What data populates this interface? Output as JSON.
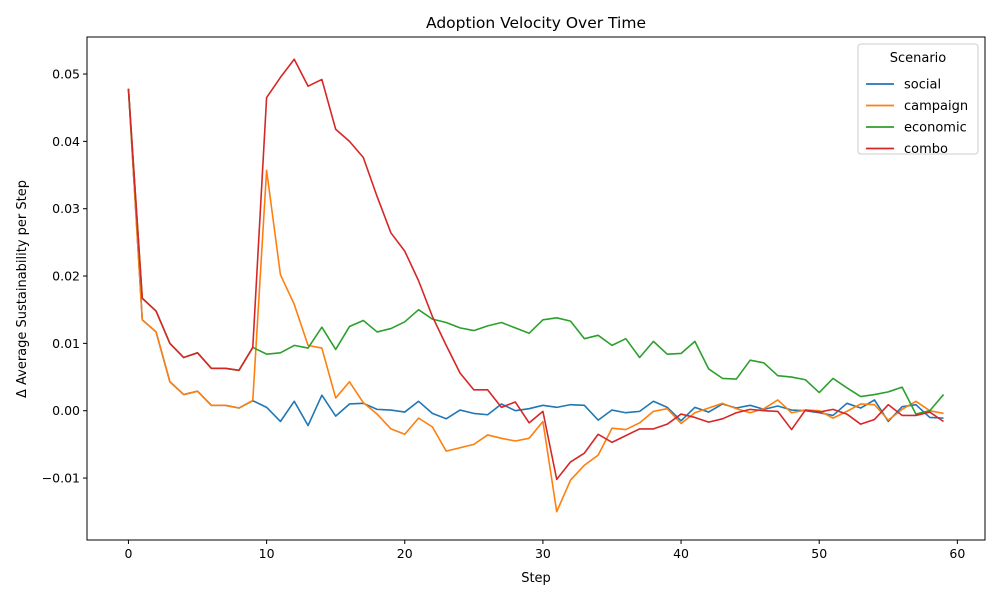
{
  "chart_data": {
    "type": "line",
    "title": "Adoption Velocity Over Time",
    "xlabel": "Step",
    "ylabel": "Δ Average Sustainability per Step",
    "xlim": [
      -3,
      62
    ],
    "ylim": [
      -0.0192,
      0.0555
    ],
    "xticks": [
      0,
      10,
      20,
      30,
      40,
      50,
      60
    ],
    "yticks": [
      -0.01,
      0.0,
      0.01,
      0.02,
      0.03,
      0.04,
      0.05
    ],
    "ytick_labels": [
      "−0.01",
      "0.00",
      "0.01",
      "0.02",
      "0.03",
      "0.04",
      "0.05"
    ],
    "grid": false,
    "legend": {
      "title": "Scenario",
      "placement": "upper-right"
    },
    "x": [
      0,
      1,
      2,
      3,
      4,
      5,
      6,
      7,
      8,
      9,
      10,
      11,
      12,
      13,
      14,
      15,
      16,
      17,
      18,
      19,
      20,
      21,
      22,
      23,
      24,
      25,
      26,
      27,
      28,
      29,
      30,
      31,
      32,
      33,
      34,
      35,
      36,
      37,
      38,
      39,
      40,
      41,
      42,
      43,
      44,
      45,
      46,
      47,
      48,
      49,
      50,
      51,
      52,
      53,
      54,
      55,
      56,
      57,
      58,
      59
    ],
    "series": [
      {
        "name": "social",
        "color": "#1f77b4",
        "values": [
          0.0478,
          0.0135,
          0.0117,
          0.0043,
          0.0024,
          0.0029,
          0.0008,
          0.0008,
          0.0004,
          0.0015,
          0.0005,
          -0.0016,
          0.0014,
          -0.0022,
          0.0023,
          -0.0008,
          0.001,
          0.0011,
          0.0002,
          0.0001,
          -0.0002,
          0.0014,
          -0.0004,
          -0.0012,
          0.0001,
          -0.0004,
          -0.0006,
          0.001,
          0.0,
          0.0003,
          0.0008,
          0.0005,
          0.0009,
          0.0008,
          -0.0014,
          0.0001,
          -0.0003,
          -0.0001,
          0.0014,
          0.0005,
          -0.0015,
          0.0005,
          -0.0002,
          0.001,
          0.0004,
          0.0008,
          0.0002,
          0.0007,
          0.0001,
          0.0,
          -0.0003,
          -0.0007,
          0.0011,
          0.0004,
          0.0016,
          -0.0016,
          0.0006,
          0.0009,
          -0.001,
          -0.0011
        ]
      },
      {
        "name": "campaign",
        "color": "#ff7f0e",
        "values": [
          0.0478,
          0.0135,
          0.0117,
          0.0043,
          0.0024,
          0.0029,
          0.0008,
          0.0008,
          0.0004,
          0.0015,
          0.0357,
          0.0202,
          0.0158,
          0.0097,
          0.0093,
          0.0019,
          0.0043,
          0.0012,
          -0.0005,
          -0.0027,
          -0.0035,
          -0.0011,
          -0.0024,
          -0.006,
          -0.0055,
          -0.005,
          -0.0036,
          -0.0041,
          -0.0045,
          -0.0041,
          -0.0016,
          -0.015,
          -0.0103,
          -0.0081,
          -0.0066,
          -0.0026,
          -0.0028,
          -0.0018,
          -0.0001,
          0.0003,
          -0.0019,
          -0.0003,
          0.0004,
          0.0011,
          0.0003,
          -0.0003,
          0.0003,
          0.0016,
          -0.0003,
          0.0001,
          0.0,
          -0.0011,
          -0.0001,
          0.001,
          0.0009,
          -0.0014,
          0.0002,
          0.0014,
          0.0,
          -0.0004
        ]
      },
      {
        "name": "economic",
        "color": "#2ca02c",
        "values": [
          0.0478,
          0.0167,
          0.0148,
          0.01,
          0.0079,
          0.0086,
          0.0063,
          0.0063,
          0.006,
          0.0094,
          0.0084,
          0.0086,
          0.0097,
          0.0093,
          0.0124,
          0.0091,
          0.0125,
          0.0134,
          0.0117,
          0.0122,
          0.0132,
          0.015,
          0.0136,
          0.0131,
          0.0123,
          0.0119,
          0.0126,
          0.0131,
          0.0123,
          0.0115,
          0.0135,
          0.0138,
          0.0133,
          0.0107,
          0.0112,
          0.0097,
          0.0107,
          0.0079,
          0.0103,
          0.0084,
          0.0085,
          0.0103,
          0.0062,
          0.0048,
          0.0047,
          0.0075,
          0.0071,
          0.0052,
          0.005,
          0.0046,
          0.0027,
          0.0048,
          0.0034,
          0.0021,
          0.0024,
          0.0028,
          0.0035,
          -0.0005,
          0.0,
          0.0024
        ]
      },
      {
        "name": "combo",
        "color": "#d62728",
        "values": [
          0.0478,
          0.0167,
          0.0148,
          0.01,
          0.0079,
          0.0086,
          0.0063,
          0.0063,
          0.006,
          0.0094,
          0.0465,
          0.0495,
          0.0522,
          0.0482,
          0.0492,
          0.0418,
          0.04,
          0.0376,
          0.0318,
          0.0264,
          0.0237,
          0.0193,
          0.014,
          0.0097,
          0.0056,
          0.0031,
          0.0031,
          0.0005,
          0.0013,
          -0.0018,
          -0.0001,
          -0.0102,
          -0.0076,
          -0.0063,
          -0.0035,
          -0.0047,
          -0.0037,
          -0.0027,
          -0.0027,
          -0.002,
          -0.0005,
          -0.001,
          -0.0017,
          -0.0012,
          -0.0003,
          0.0002,
          0.0,
          -0.0001,
          -0.0028,
          0.0001,
          -0.0002,
          0.0002,
          -0.0005,
          -0.002,
          -0.0013,
          0.0009,
          -0.0007,
          -0.0007,
          -0.0002,
          -0.0016
        ]
      }
    ]
  }
}
